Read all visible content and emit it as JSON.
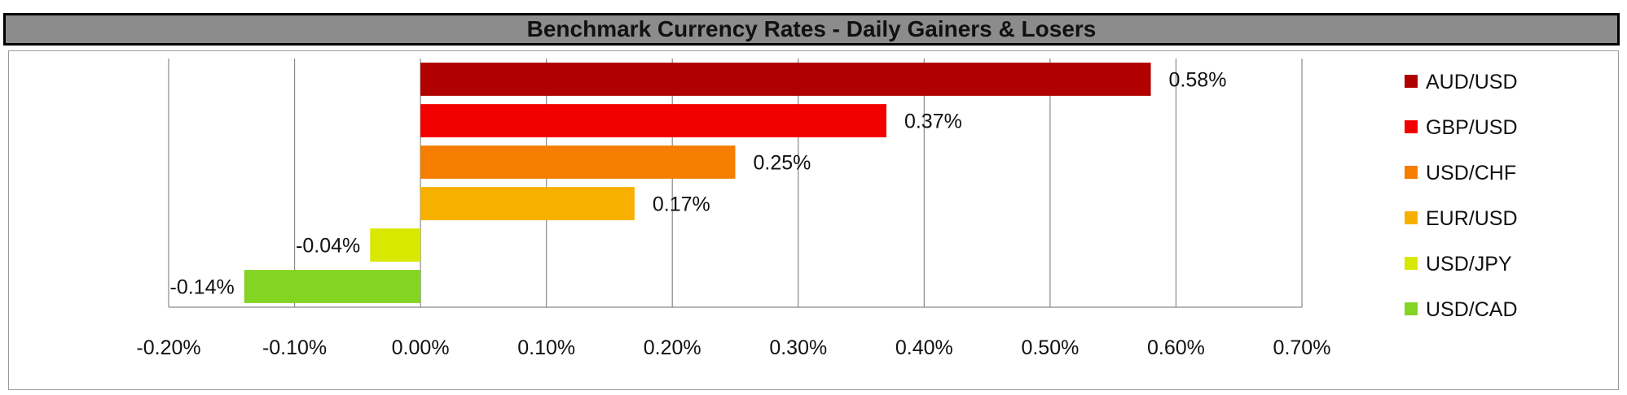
{
  "chart_data": {
    "type": "bar",
    "orientation": "horizontal",
    "title": "Benchmark Currency Rates - Daily Gainers & Losers",
    "categories": [
      "AUD/USD",
      "GBP/USD",
      "USD/CHF",
      "EUR/USD",
      "USD/JPY",
      "USD/CAD"
    ],
    "values": [
      0.58,
      0.37,
      0.25,
      0.17,
      -0.04,
      -0.14
    ],
    "data_labels": [
      "0.58%",
      "0.37%",
      "0.25%",
      "0.17%",
      "-0.04%",
      "-0.14%"
    ],
    "colors": [
      "#b00000",
      "#f20000",
      "#f57e00",
      "#f8b000",
      "#d8e800",
      "#84d424"
    ],
    "xlim": [
      -0.2,
      0.7
    ],
    "xticks": [
      -0.2,
      -0.1,
      0.0,
      0.1,
      0.2,
      0.3,
      0.4,
      0.5,
      0.6,
      0.7
    ],
    "xtick_labels": [
      "-0.20%",
      "-0.10%",
      "0.00%",
      "0.10%",
      "0.20%",
      "0.30%",
      "0.40%",
      "0.50%",
      "0.60%",
      "0.70%"
    ],
    "xlabel": "",
    "ylabel": "",
    "grid": "vertical",
    "legend_position": "right"
  }
}
